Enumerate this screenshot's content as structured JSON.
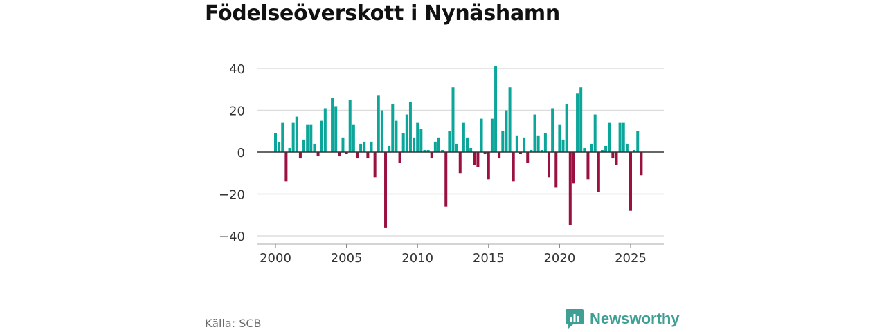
{
  "title": "Födelseöverskott i Nynäshamn",
  "source": "Källa: SCB",
  "brand": {
    "name": "Newsworthy",
    "icon": "newsworthy-chart-logo-icon"
  },
  "colors": {
    "positive": "#0ca59a",
    "negative": "#9a1040",
    "grid": "#dddddd",
    "zero": "#333333",
    "brand": "#3f9f94"
  },
  "chart_data": {
    "type": "bar",
    "title": "Födelseöverskott i Nynäshamn",
    "xlabel": "",
    "ylabel": "",
    "frequency": "quarterly",
    "x_start": 2000.0,
    "x_step": 0.25,
    "xlim": [
      1998.8,
      2027.3
    ],
    "ylim": [
      -40,
      42
    ],
    "yticks": [
      40,
      20,
      0,
      -20,
      -40
    ],
    "ytick_labels": [
      "40",
      "20",
      "0",
      "−20",
      "−40"
    ],
    "xticks": [
      2000,
      2005,
      2010,
      2015,
      2020,
      2025
    ],
    "xtick_labels": [
      "2000",
      "2005",
      "2010",
      "2015",
      "2020",
      "2025"
    ],
    "values": [
      9,
      5,
      14,
      -14,
      2,
      14,
      17,
      -3,
      6,
      13,
      13,
      4,
      -2,
      15,
      21,
      0,
      26,
      22,
      -2,
      7,
      -1,
      25,
      13,
      -3,
      4,
      5,
      -3,
      5,
      -12,
      27,
      20,
      -36,
      3,
      23,
      15,
      -5,
      9,
      18,
      24,
      7,
      14,
      11,
      1,
      1,
      -3,
      5,
      7,
      1,
      -26,
      10,
      31,
      4,
      -10,
      14,
      7,
      2,
      -6,
      -7,
      16,
      -1,
      -13,
      16,
      41,
      -3,
      10,
      20,
      31,
      -14,
      8,
      -1,
      7,
      -5,
      1,
      18,
      8,
      1,
      9,
      -12,
      21,
      -17,
      13,
      6,
      23,
      -35,
      -15,
      28,
      31,
      2,
      -13,
      4,
      18,
      -19,
      1,
      3,
      14,
      -3,
      -6,
      14,
      14,
      4,
      -28,
      1,
      10,
      -11
    ]
  }
}
